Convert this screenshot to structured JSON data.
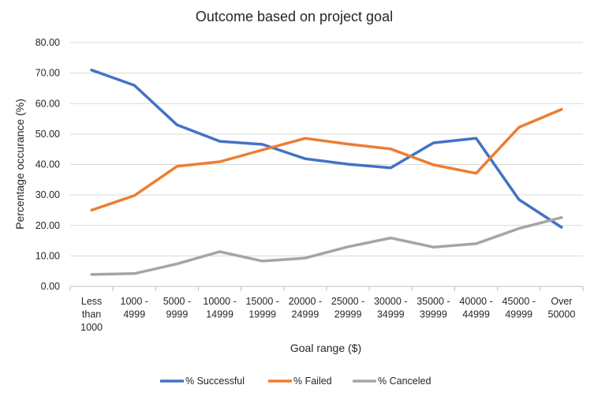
{
  "chart_data": {
    "type": "line",
    "title": "Outcome based on project goal",
    "xlabel": "Goal range ($)",
    "ylabel": "Percentage occurance (%)",
    "ylim": [
      0,
      80
    ],
    "yticks": [
      "0.00",
      "10.00",
      "20.00",
      "30.00",
      "40.00",
      "50.00",
      "60.00",
      "70.00",
      "80.00"
    ],
    "grid": true,
    "legend_position": "bottom",
    "categories": [
      [
        "Less",
        "than",
        "1000"
      ],
      [
        "1000 -",
        "4999"
      ],
      [
        "5000 -",
        "9999"
      ],
      [
        "10000 -",
        "14999"
      ],
      [
        "15000 -",
        "19999"
      ],
      [
        "20000 -",
        "24999"
      ],
      [
        "25000 -",
        "29999"
      ],
      [
        "30000 -",
        "34999"
      ],
      [
        "35000 -",
        "39999"
      ],
      [
        "40000 -",
        "44999"
      ],
      [
        "45000 -",
        "49999"
      ],
      [
        "Over",
        "50000"
      ]
    ],
    "series": [
      {
        "name": "% Successful",
        "color": "#4472c4",
        "values": [
          71.0,
          66.0,
          53.0,
          47.6,
          46.6,
          41.9,
          40.1,
          38.9,
          47.1,
          48.6,
          28.5,
          19.4
        ]
      },
      {
        "name": "% Failed",
        "color": "#ed7d31",
        "values": [
          25.0,
          29.8,
          39.4,
          40.9,
          44.8,
          48.6,
          46.7,
          45.1,
          39.9,
          37.1,
          52.2,
          58.1
        ]
      },
      {
        "name": "% Canceled",
        "color": "#a5a5a5",
        "values": [
          3.9,
          4.2,
          7.4,
          11.4,
          8.3,
          9.3,
          13.0,
          15.9,
          12.9,
          14.0,
          19.0,
          22.6
        ]
      }
    ]
  }
}
